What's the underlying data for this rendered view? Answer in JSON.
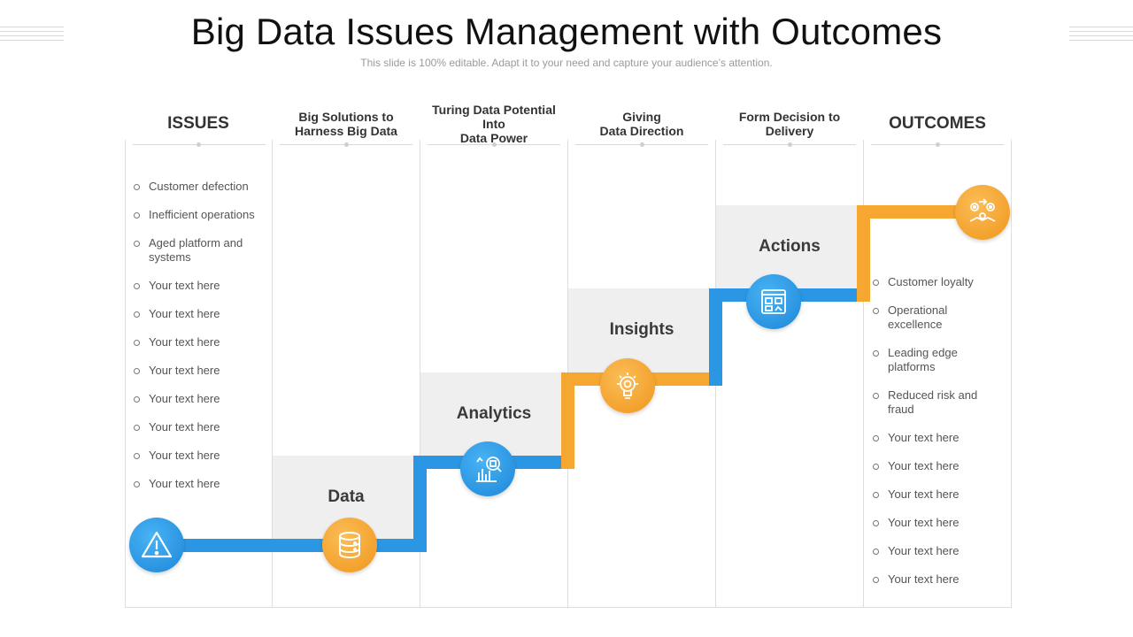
{
  "slide": {
    "title": "Big Data Issues Management with Outcomes",
    "subtitle": "This slide is 100% editable. Adapt it to your need and capture your audience’s attention."
  },
  "columns": [
    {
      "header": "ISSUES"
    },
    {
      "header": "Big Solutions to\nHarness Big Data"
    },
    {
      "header": "Turing Data Potential Into\nData Power"
    },
    {
      "header": "Giving\nData Direction"
    },
    {
      "header": "Form Decision to\nDelivery"
    },
    {
      "header": "OUTCOMES"
    }
  ],
  "issues": [
    "Customer defection",
    "Inefficient operations",
    "Aged platform and systems",
    "Your text here",
    "Your text here",
    "Your text here",
    "Your text here",
    "Your text here",
    "Your text here",
    "Your text here",
    "Your text here"
  ],
  "outcomes": [
    "Customer loyalty",
    "Operational excellence",
    "Leading edge platforms",
    "Reduced risk and fraud",
    "Your text here",
    "Your text here",
    "Your text here",
    "Your text here",
    "Your text here",
    "Your text here"
  ],
  "steps": [
    {
      "label": "Data",
      "icon": "database-icon"
    },
    {
      "label": "Analytics",
      "icon": "analytics-magnifier-icon"
    },
    {
      "label": "Insights",
      "icon": "lightbulb-icon"
    },
    {
      "label": "Actions",
      "icon": "dashboard-icon"
    }
  ],
  "endpoints": {
    "start_icon": "warning-icon",
    "end_icon": "gears-handshake-icon"
  },
  "colors": {
    "blue": "#2b97e4",
    "orange": "#f5a731",
    "box": "#efefef"
  }
}
